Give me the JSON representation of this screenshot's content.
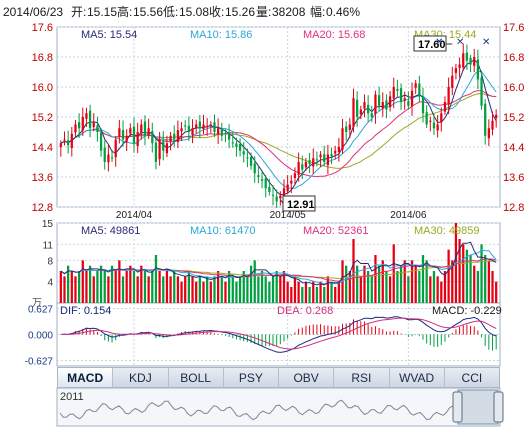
{
  "header": {
    "date": "2014/06/23",
    "open_label": "开:",
    "open": "15.15",
    "high_label": "高:",
    "high": "15.56",
    "low_label": "低:",
    "low": "15.08",
    "close_label": "收:",
    "close": "15.26",
    "volume_label": "量:",
    "volume": "38208",
    "change_label": "幅:",
    "change": "0.46%"
  },
  "colors": {
    "up": "#e60012",
    "down": "#00a040",
    "ma5": "#2a2a7a",
    "ma10": "#2aa8d8",
    "ma20": "#e0307a",
    "ma30": "#9aaa20",
    "grid": "#c9d4e3",
    "label": "#c00000"
  },
  "price_legend": {
    "ma5": "MA5: 15.54",
    "ma10": "MA10: 15.86",
    "ma20": "MA20: 15.68",
    "ma30": "MA30: 15.44"
  },
  "volume_legend": {
    "ma5": "MA5: 49861",
    "ma10": "MA10: 61470",
    "ma20": "MA20: 52361",
    "ma30": "MA30: 49859"
  },
  "macd_legend": {
    "dif": "DIF: 0.154",
    "dea": "DEA: 0.268",
    "macd": "MACD: -0.229"
  },
  "price_axis": {
    "ticks": [
      "17.6",
      "16.8",
      "16.0",
      "15.2",
      "14.4",
      "13.6",
      "12.8"
    ],
    "values": [
      17.6,
      16.8,
      16.0,
      15.2,
      14.4,
      13.6,
      12.8
    ],
    "min": 12.8,
    "max": 17.6
  },
  "volume_axis": {
    "ticks": [
      "15",
      "11",
      "8",
      "4"
    ],
    "values": [
      15,
      11,
      8,
      4
    ],
    "max": 15,
    "unit": "万"
  },
  "macd_axis": {
    "ticks": [
      "0.627",
      "0.000",
      "-0.627"
    ],
    "values": [
      0.627,
      0,
      -0.627
    ]
  },
  "x_axis": {
    "labels": [
      "2014/04",
      "2014/05",
      "2014/06"
    ],
    "indices": [
      20,
      62,
      95
    ]
  },
  "annotations": {
    "max_label": "17.60",
    "min_label": "12.91",
    "max_index": 107,
    "min_index": 60
  },
  "tabs": [
    "MACD",
    "KDJ",
    "BOLL",
    "PSY",
    "OBV",
    "RSI",
    "WVAD",
    "CCI"
  ],
  "active_tab": "MACD",
  "navigator": {
    "year_label": "2011"
  },
  "chart_data": {
    "type": "candlestick",
    "title": "",
    "ylim": [
      12.8,
      17.6
    ],
    "series": [
      {
        "name": "MA5",
        "value": 15.54
      },
      {
        "name": "MA10",
        "value": 15.86
      },
      {
        "name": "MA20",
        "value": 15.68
      },
      {
        "name": "MA30",
        "value": 15.44
      }
    ],
    "last_bar": {
      "date": "2014/06/23",
      "open": 15.15,
      "high": 15.56,
      "low": 15.08,
      "close": 15.26,
      "volume": 38208,
      "change_pct": 0.46
    },
    "closes": [
      14.5,
      14.6,
      14.45,
      14.75,
      15.0,
      14.9,
      15.2,
      15.3,
      14.9,
      15.05,
      14.8,
      14.3,
      14.0,
      14.2,
      14.1,
      14.6,
      14.9,
      14.6,
      14.7,
      14.9,
      14.5,
      14.8,
      15.0,
      14.7,
      14.9,
      14.5,
      14.0,
      14.6,
      14.3,
      14.5,
      14.7,
      14.6,
      14.85,
      14.9,
      14.95,
      14.8,
      14.9,
      15.0,
      14.9,
      15.0,
      14.95,
      15.0,
      14.8,
      14.9,
      14.7,
      14.75,
      14.6,
      14.5,
      14.4,
      14.3,
      14.2,
      14.1,
      13.9,
      13.7,
      13.6,
      13.5,
      13.3,
      13.2,
      13.1,
      12.95,
      13.1,
      13.3,
      13.4,
      13.5,
      13.7,
      14.0,
      13.8,
      14.0,
      13.95,
      14.1,
      14.05,
      14.2,
      14.0,
      14.2,
      14.15,
      14.3,
      14.4,
      14.9,
      14.8,
      15.0,
      15.7,
      15.2,
      15.4,
      15.6,
      15.3,
      15.2,
      15.8,
      15.5,
      15.6,
      15.4,
      15.75,
      16.0,
      15.9,
      15.6,
      15.7,
      15.5,
      15.9,
      16.1,
      15.8,
      15.3,
      15.0,
      15.1,
      14.9,
      15.0,
      15.3,
      15.6,
      16.0,
      16.3,
      16.5,
      16.6,
      16.9,
      16.7,
      16.6,
      16.8,
      16.2,
      15.5,
      14.7,
      14.9,
      15.1,
      15.26
    ],
    "volumes": [
      6,
      5,
      7,
      6,
      5,
      6,
      8,
      6,
      7,
      5,
      6,
      7,
      6,
      5,
      7,
      6,
      8,
      5,
      6,
      7,
      6,
      5,
      7,
      6,
      5,
      6,
      9,
      6,
      5,
      6,
      5,
      6,
      5,
      4,
      5,
      6,
      5,
      4,
      5,
      4,
      5,
      4,
      5,
      6,
      5,
      4,
      6,
      5,
      4,
      5,
      6,
      5,
      7,
      8,
      5,
      6,
      5,
      4,
      5,
      6,
      5,
      6,
      4,
      3,
      5,
      4,
      3,
      4,
      3,
      4,
      3,
      4,
      3,
      5,
      4,
      3,
      4,
      8,
      7,
      6,
      12,
      7,
      5,
      7,
      6,
      5,
      9,
      7,
      8,
      6,
      5,
      11,
      6,
      7,
      8,
      5,
      8,
      7,
      6,
      9,
      8,
      5,
      6,
      5,
      4,
      6,
      10,
      8,
      15,
      12,
      11,
      10,
      9,
      7,
      6,
      11,
      9,
      8,
      6,
      4
    ]
  }
}
